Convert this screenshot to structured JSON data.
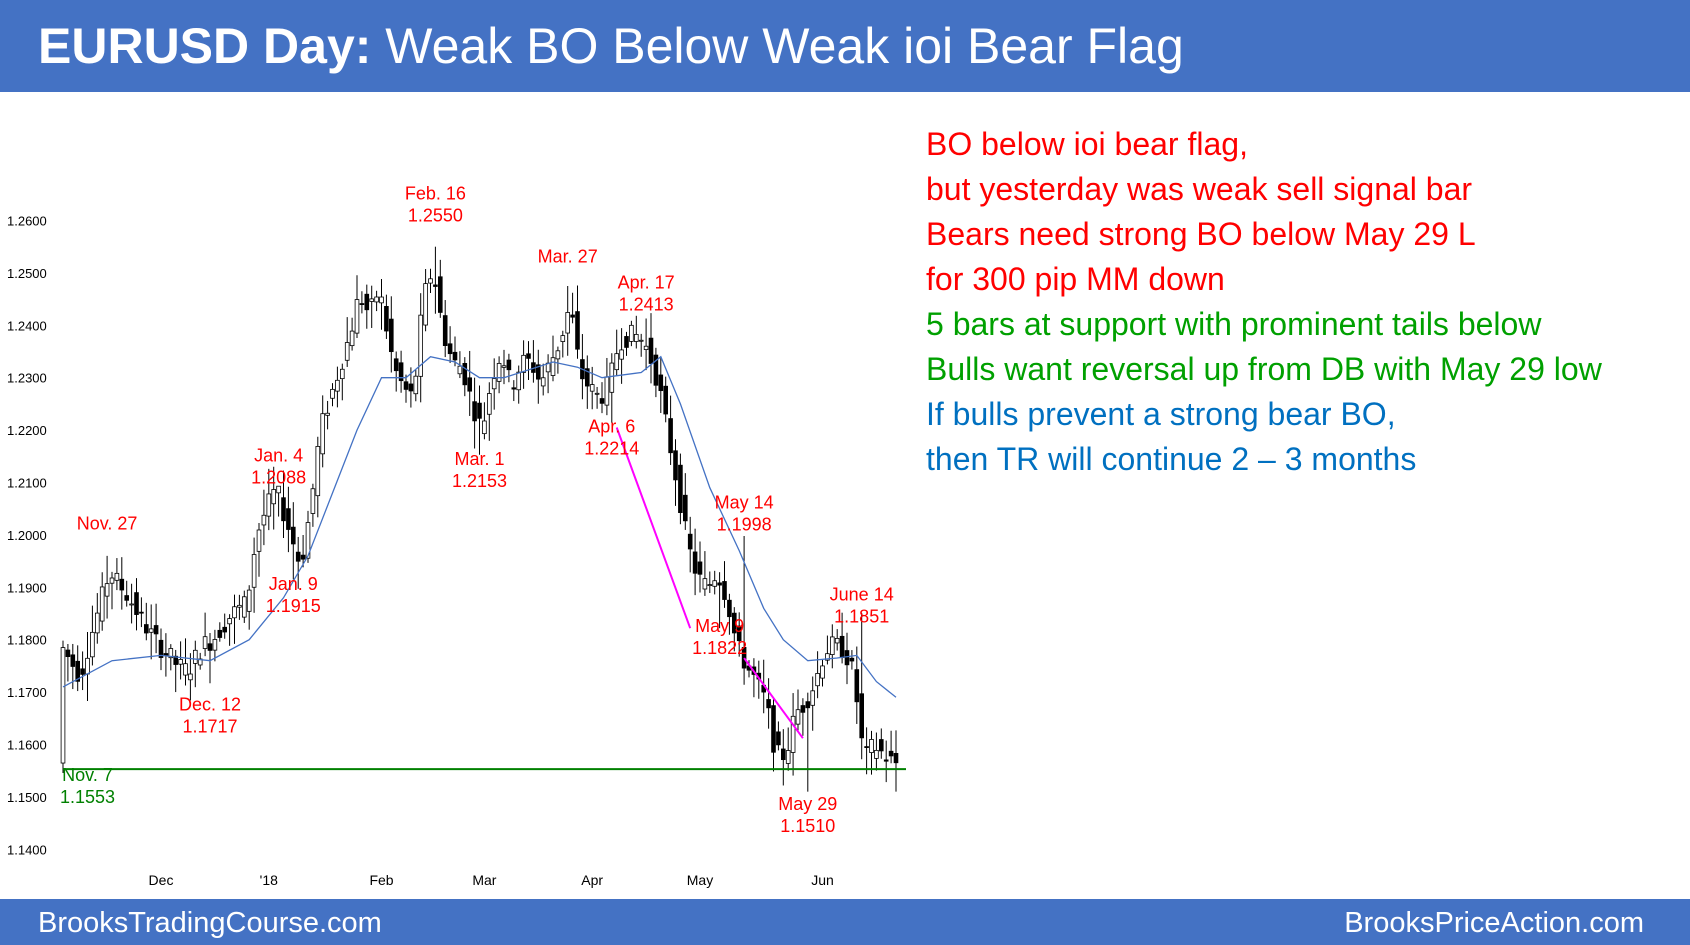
{
  "header": {
    "title_bold": "EURUSD Day:",
    "title_rest": " Weak BO Below Weak ioi Bear Flag",
    "bg_color": "#4472c4"
  },
  "footer": {
    "left": "BrooksTradingCourse.com",
    "right": "BrooksPriceAction.com"
  },
  "notes": [
    {
      "text": "BO below ioi bear flag,",
      "color": "#ff0000"
    },
    {
      "text": "but yesterday was weak sell signal bar",
      "color": "#ff0000"
    },
    {
      "text": "Bears need strong BO below May 29 L",
      "color": "#ff0000"
    },
    {
      "text": "for 300 pip MM down",
      "color": "#ff0000"
    },
    {
      "text": "5 bars at support with prominent tails below",
      "color": "#00a000"
    },
    {
      "text": "Bulls want reversal up from DB  with May 29 low",
      "color": "#00a000"
    },
    {
      "text": "If bulls prevent a strong bear BO,",
      "color": "#0070c0"
    },
    {
      "text": "then TR will continue 2 – 3 months",
      "color": "#0070c0"
    }
  ],
  "chart_data": {
    "type": "candlestick",
    "title": "",
    "xlabel": "",
    "ylabel": "",
    "ylim": [
      1.14,
      1.265
    ],
    "y_ticks": [
      "1.1400",
      "1.1500",
      "1.1600",
      "1.1700",
      "1.1800",
      "1.1900",
      "1.2000",
      "1.2100",
      "1.2200",
      "1.2300",
      "1.2400",
      "1.2500",
      "1.2600"
    ],
    "x_ticks": [
      {
        "label": "Dec",
        "bar": 20
      },
      {
        "label": "'18",
        "bar": 42
      },
      {
        "label": "Feb",
        "bar": 65
      },
      {
        "label": "Mar",
        "bar": 86
      },
      {
        "label": "Apr",
        "bar": 108
      },
      {
        "label": "May",
        "bar": 130
      },
      {
        "label": "Jun",
        "bar": 155
      }
    ],
    "grid": false,
    "colors": {
      "bull_body": "#ffffff",
      "bear_body": "#000000",
      "wick": "#000000",
      "moving_average": "#4472c4",
      "support_line": "#008000",
      "bear_channel": "#ff00ff",
      "label_red": "#ff0000",
      "label_green": "#008000"
    },
    "support_line": {
      "value": 1.1553,
      "from_bar": 0,
      "to_bar": 170
    },
    "bear_channel_lines": [
      {
        "from_bar": 113,
        "from_value": 1.2205,
        "to_bar": 128,
        "to_value": 1.1822
      },
      {
        "from_bar": 139,
        "from_value": 1.1765,
        "to_bar": 151,
        "to_value": 1.1612
      }
    ],
    "ma_points": [
      [
        0,
        1.171
      ],
      [
        10,
        1.176
      ],
      [
        20,
        1.177
      ],
      [
        30,
        1.176
      ],
      [
        38,
        1.18
      ],
      [
        45,
        1.188
      ],
      [
        50,
        1.196
      ],
      [
        55,
        1.208
      ],
      [
        60,
        1.22
      ],
      [
        65,
        1.23
      ],
      [
        70,
        1.23
      ],
      [
        75,
        1.234
      ],
      [
        80,
        1.233
      ],
      [
        85,
        1.23
      ],
      [
        90,
        1.23
      ],
      [
        100,
        1.233
      ],
      [
        105,
        1.232
      ],
      [
        110,
        1.23
      ],
      [
        118,
        1.231
      ],
      [
        122,
        1.234
      ],
      [
        126,
        1.225
      ],
      [
        132,
        1.209
      ],
      [
        138,
        1.197
      ],
      [
        143,
        1.186
      ],
      [
        147,
        1.18
      ],
      [
        152,
        1.176
      ],
      [
        158,
        1.1765
      ],
      [
        162,
        1.177
      ],
      [
        166,
        1.172
      ],
      [
        170,
        1.169
      ]
    ],
    "price_points": [
      [
        0,
        1.179
      ],
      [
        4,
        1.173
      ],
      [
        6,
        1.18
      ],
      [
        10,
        1.193
      ],
      [
        14,
        1.188
      ],
      [
        17,
        1.183
      ],
      [
        20,
        1.179
      ],
      [
        24,
        1.175
      ],
      [
        26,
        1.174
      ],
      [
        29,
        1.179
      ],
      [
        31,
        1.18
      ],
      [
        35,
        1.185
      ],
      [
        38,
        1.187
      ],
      [
        40,
        1.2
      ],
      [
        42,
        1.205
      ],
      [
        44,
        1.2088
      ],
      [
        47,
        1.2
      ],
      [
        49,
        1.194
      ],
      [
        51,
        1.205
      ],
      [
        53,
        1.22
      ],
      [
        55,
        1.226
      ],
      [
        57,
        1.232
      ],
      [
        59,
        1.238
      ],
      [
        61,
        1.246
      ],
      [
        63,
        1.242
      ],
      [
        65,
        1.247
      ],
      [
        68,
        1.232
      ],
      [
        70,
        1.228
      ],
      [
        72,
        1.226
      ],
      [
        74,
        1.245
      ],
      [
        76,
        1.251
      ],
      [
        78,
        1.239
      ],
      [
        80,
        1.233
      ],
      [
        82,
        1.232
      ],
      [
        84,
        1.225
      ],
      [
        86,
        1.22
      ],
      [
        88,
        1.23
      ],
      [
        90,
        1.235
      ],
      [
        92,
        1.228
      ],
      [
        94,
        1.233
      ],
      [
        96,
        1.233
      ],
      [
        98,
        1.229
      ],
      [
        100,
        1.233
      ],
      [
        102,
        1.237
      ],
      [
        104,
        1.244
      ],
      [
        106,
        1.231
      ],
      [
        108,
        1.228
      ],
      [
        110,
        1.226
      ],
      [
        112,
        1.229
      ],
      [
        114,
        1.237
      ],
      [
        116,
        1.238
      ],
      [
        118,
        1.238
      ],
      [
        120,
        1.235
      ],
      [
        122,
        1.229
      ],
      [
        124,
        1.219
      ],
      [
        126,
        1.209
      ],
      [
        128,
        1.198
      ],
      [
        130,
        1.192
      ],
      [
        132,
        1.19
      ],
      [
        134,
        1.193
      ],
      [
        136,
        1.188
      ],
      [
        138,
        1.179
      ],
      [
        140,
        1.175
      ],
      [
        142,
        1.172
      ],
      [
        144,
        1.168
      ],
      [
        146,
        1.158
      ],
      [
        148,
        1.158
      ],
      [
        150,
        1.166
      ],
      [
        152,
        1.168
      ],
      [
        154,
        1.172
      ],
      [
        156,
        1.178
      ],
      [
        158,
        1.179
      ],
      [
        160,
        1.178
      ],
      [
        162,
        1.173
      ],
      [
        163,
        1.164
      ],
      [
        164,
        1.157
      ],
      [
        166,
        1.16
      ],
      [
        168,
        1.158
      ],
      [
        170,
        1.1565
      ]
    ],
    "annotations": [
      {
        "lines": [
          "Nov. 27"
        ],
        "bar": 9,
        "value": 1.201,
        "color": "red"
      },
      {
        "lines": [
          "Dec. 12",
          "1.1717"
        ],
        "bar": 30,
        "value": 1.1665,
        "color": "red"
      },
      {
        "lines": [
          "Jan. 4",
          "1.2088"
        ],
        "bar": 44,
        "value": 1.214,
        "color": "red"
      },
      {
        "lines": [
          "Jan. 9",
          "1.1915"
        ],
        "bar": 47,
        "value": 1.1895,
        "color": "red"
      },
      {
        "lines": [
          "Feb. 16",
          "1.2550"
        ],
        "bar": 76,
        "value": 1.264,
        "color": "red"
      },
      {
        "lines": [
          "Mar. 1",
          "1.2153"
        ],
        "bar": 85,
        "value": 1.2133,
        "color": "red"
      },
      {
        "lines": [
          "Mar. 27"
        ],
        "bar": 103,
        "value": 1.252,
        "color": "red"
      },
      {
        "lines": [
          "Apr. 17",
          "1.2413"
        ],
        "bar": 119,
        "value": 1.247,
        "color": "red"
      },
      {
        "lines": [
          "Apr. 6",
          "1.2214"
        ],
        "bar": 112,
        "value": 1.2195,
        "color": "red"
      },
      {
        "lines": [
          "May 14",
          "1.1998"
        ],
        "bar": 139,
        "value": 1.205,
        "color": "red"
      },
      {
        "lines": [
          "May 9",
          "1.1822"
        ],
        "bar": 134,
        "value": 1.1815,
        "color": "red"
      },
      {
        "lines": [
          "May 29",
          "1.1510"
        ],
        "bar": 152,
        "value": 1.1475,
        "color": "red"
      },
      {
        "lines": [
          "June 14",
          "1.1851"
        ],
        "bar": 163,
        "value": 1.1875,
        "color": "red"
      },
      {
        "lines": [
          "Nov. 7",
          "1.1553"
        ],
        "bar": 5,
        "value": 1.153,
        "color": "green"
      }
    ]
  }
}
